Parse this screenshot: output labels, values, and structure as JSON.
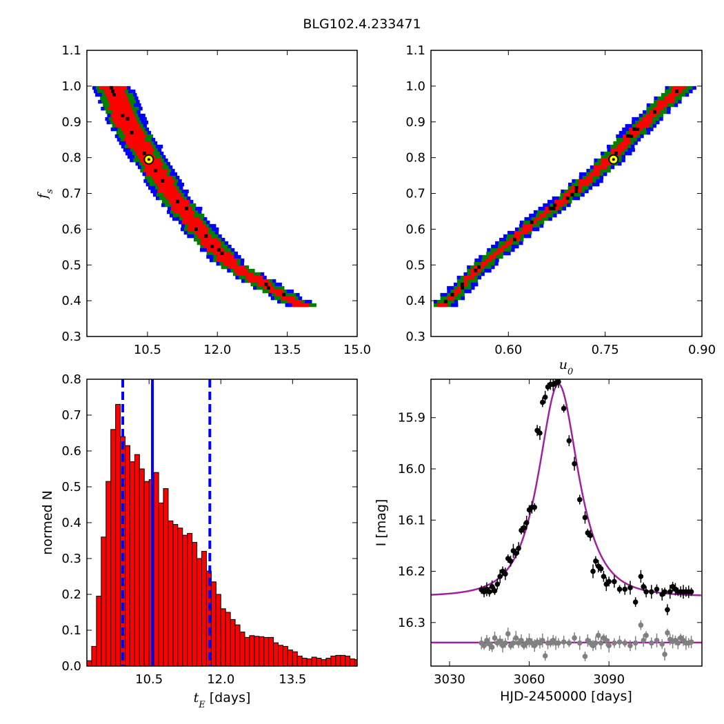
{
  "figure": {
    "title": "BLG102.4.233471"
  },
  "chart_data": [
    {
      "id": "fs_vs_tE",
      "type": "heatmap",
      "xlabel": "",
      "ylabel": "f_s",
      "xlim": [
        9.2,
        15.0
      ],
      "ylim": [
        0.3,
        1.1
      ],
      "xticks": [
        10.5,
        12.0,
        13.5,
        15.0
      ],
      "xtick_labels": [
        "10.5",
        "12.0",
        "13.5",
        "15.0"
      ],
      "yticks": [
        0.3,
        0.4,
        0.5,
        0.6,
        0.7,
        0.8,
        0.9,
        1.0,
        1.1
      ],
      "ytick_labels": [
        "0.3",
        "0.4",
        "0.5",
        "0.6",
        "0.7",
        "0.8",
        "0.9",
        "1.0",
        "1.1"
      ],
      "colors": {
        "outer": "#0000ff",
        "middle": "#008000",
        "inner": "#ff0000",
        "peak": "#000000"
      },
      "ridge": [
        [
          9.75,
          1.0
        ],
        [
          10.05,
          0.9
        ],
        [
          10.5,
          0.8
        ],
        [
          11.0,
          0.7
        ],
        [
          11.6,
          0.6
        ],
        [
          12.3,
          0.5
        ],
        [
          13.6,
          0.4
        ],
        [
          13.95,
          0.38
        ]
      ],
      "best_fit": {
        "x": 10.53,
        "y": 0.795,
        "marker_color": "#ffff00"
      }
    },
    {
      "id": "fs_vs_u0",
      "type": "heatmap",
      "xlabel": "u_0",
      "ylabel": "",
      "xlim": [
        0.48,
        0.9
      ],
      "ylim": [
        0.3,
        1.1
      ],
      "xticks": [
        0.6,
        0.75,
        0.9
      ],
      "xtick_labels": [
        "0.60",
        "0.75",
        "0.90"
      ],
      "yticks": [
        0.3,
        0.4,
        0.5,
        0.6,
        0.7,
        0.8,
        0.9,
        1.0,
        1.1
      ],
      "ytick_labels": [
        "0.3",
        "0.4",
        "0.5",
        "0.6",
        "0.7",
        "0.8",
        "0.9",
        "1.0",
        "1.1"
      ],
      "colors": {
        "outer": "#0000ff",
        "middle": "#008000",
        "inner": "#ff0000",
        "peak": "#000000"
      },
      "ridge": [
        [
          0.495,
          0.38
        ],
        [
          0.56,
          0.5
        ],
        [
          0.64,
          0.62
        ],
        [
          0.7,
          0.7
        ],
        [
          0.76,
          0.8
        ],
        [
          0.81,
          0.9
        ],
        [
          0.87,
          1.0
        ]
      ],
      "best_fit": {
        "x": 0.763,
        "y": 0.795,
        "marker_color": "#ffff00"
      }
    },
    {
      "id": "tE_histogram",
      "type": "bar",
      "xlabel": "t_E [days]",
      "ylabel": "normed N",
      "xlim": [
        9.2,
        14.85
      ],
      "ylim": [
        0.0,
        0.8
      ],
      "xticks": [
        10.5,
        12.0,
        13.5
      ],
      "xtick_labels": [
        "10.5",
        "12.0",
        "13.5"
      ],
      "yticks": [
        0.0,
        0.1,
        0.2,
        0.3,
        0.4,
        0.5,
        0.6,
        0.7,
        0.8
      ],
      "ytick_labels": [
        "0.0",
        "0.1",
        "0.2",
        "0.3",
        "0.4",
        "0.5",
        "0.6",
        "0.7",
        "0.8"
      ],
      "bin_width": 0.1,
      "bin_start": 9.2,
      "values": [
        0.015,
        0.055,
        0.195,
        0.36,
        0.515,
        0.66,
        0.73,
        0.64,
        0.615,
        0.57,
        0.59,
        0.55,
        0.515,
        0.52,
        0.54,
        0.455,
        0.495,
        0.405,
        0.395,
        0.385,
        0.365,
        0.37,
        0.345,
        0.3,
        0.32,
        0.265,
        0.235,
        0.2,
        0.16,
        0.15,
        0.13,
        0.115,
        0.095,
        0.08,
        0.085,
        0.083,
        0.082,
        0.08,
        0.08,
        0.065,
        0.058,
        0.055,
        0.045,
        0.04,
        0.028,
        0.022,
        0.02,
        0.025,
        0.022,
        0.018,
        0.022,
        0.028,
        0.03,
        0.03,
        0.028,
        0.02,
        0.018,
        0.01,
        0.008,
        0.005,
        0.004
      ],
      "bar_color": "#ff0000",
      "edge_color": "#000000",
      "lines": [
        {
          "x": 9.95,
          "style": "dashed",
          "color": "#0000ff"
        },
        {
          "x": 10.57,
          "style": "solid",
          "color": "#0000ff"
        },
        {
          "x": 11.77,
          "style": "dashed",
          "color": "#0000ff"
        }
      ]
    },
    {
      "id": "light_curve",
      "type": "scatter",
      "xlabel": "HJD-2450000 [days]",
      "ylabel": "I [mag]",
      "xlim": [
        3023,
        3125
      ],
      "ylim": [
        16.385,
        15.825
      ],
      "xticks": [
        3030,
        3060,
        3090
      ],
      "xtick_labels": [
        "3030",
        "3060",
        "3090"
      ],
      "yticks": [
        15.9,
        16.0,
        16.1,
        16.2,
        16.3
      ],
      "ytick_labels": [
        "15.9",
        "16.0",
        "16.1",
        "16.2",
        "16.3"
      ],
      "model": {
        "t0": 3071.0,
        "u0": 0.76,
        "tE": 10.53,
        "fs": 0.795,
        "I_base": 16.249,
        "color": "#a020a0"
      },
      "residual_line": {
        "mag": 16.339,
        "color": "#a020a0"
      },
      "series": [
        {
          "color": "#000000",
          "x": [
            3042,
            3043,
            3044,
            3045,
            3046,
            3047,
            3048,
            3049,
            3050,
            3051,
            3052,
            3053,
            3054,
            3055,
            3056,
            3057,
            3058,
            3059,
            3060,
            3061,
            3062,
            3063,
            3064,
            3065,
            3066,
            3067,
            3068,
            3069,
            3070,
            3071,
            3073,
            3075,
            3077,
            3079,
            3081,
            3082,
            3083,
            3084,
            3085,
            3086,
            3087,
            3088,
            3089,
            3090,
            3092,
            3094,
            3096,
            3098,
            3100,
            3102,
            3103,
            3104,
            3106,
            3108,
            3110,
            3111,
            3112,
            3113,
            3114,
            3115,
            3116,
            3117,
            3118,
            3119,
            3120,
            3121
          ],
          "y": [
            16.236,
            16.24,
            16.235,
            16.24,
            16.23,
            16.238,
            16.225,
            16.21,
            16.2,
            16.205,
            16.175,
            16.18,
            16.16,
            16.165,
            16.155,
            16.12,
            16.115,
            16.105,
            16.08,
            16.075,
            16.075,
            15.925,
            15.93,
            15.87,
            15.86,
            15.84,
            15.835,
            15.835,
            15.832,
            15.83,
            15.882,
            15.945,
            15.99,
            16.06,
            16.095,
            16.125,
            16.13,
            16.2,
            16.18,
            16.19,
            16.195,
            16.21,
            16.225,
            16.22,
            16.22,
            16.235,
            16.235,
            16.232,
            16.26,
            16.21,
            16.23,
            16.24,
            16.24,
            16.235,
            16.245,
            16.24,
            16.275,
            16.24,
            16.23,
            16.235,
            16.24,
            16.24,
            16.24,
            16.24,
            16.24,
            16.24
          ]
        },
        {
          "color": "#808080",
          "x": [
            3042,
            3043,
            3044,
            3045,
            3046,
            3047,
            3048,
            3049,
            3050,
            3051,
            3052,
            3053,
            3054,
            3055,
            3056,
            3057,
            3058,
            3059,
            3060,
            3061,
            3062,
            3063,
            3064,
            3065,
            3066,
            3067,
            3068,
            3069,
            3070,
            3071,
            3073,
            3075,
            3077,
            3079,
            3081,
            3082,
            3083,
            3084,
            3085,
            3086,
            3087,
            3088,
            3089,
            3090,
            3092,
            3094,
            3096,
            3098,
            3100,
            3102,
            3103,
            3104,
            3106,
            3108,
            3110,
            3111,
            3112,
            3113,
            3114,
            3115,
            3116,
            3117,
            3118,
            3119,
            3120,
            3121
          ],
          "y": [
            16.34,
            16.345,
            16.335,
            16.342,
            16.348,
            16.33,
            16.34,
            16.336,
            16.345,
            16.34,
            16.322,
            16.345,
            16.34,
            16.33,
            16.34,
            16.335,
            16.345,
            16.34,
            16.335,
            16.34,
            16.345,
            16.338,
            16.34,
            16.335,
            16.365,
            16.34,
            16.34,
            16.335,
            16.34,
            16.34,
            16.338,
            16.34,
            16.33,
            16.34,
            16.366,
            16.335,
            16.34,
            16.345,
            16.34,
            16.325,
            16.34,
            16.33,
            16.335,
            16.345,
            16.34,
            16.338,
            16.34,
            16.345,
            16.34,
            16.305,
            16.335,
            16.325,
            16.34,
            16.335,
            16.342,
            16.362,
            16.32,
            16.333,
            16.337,
            16.335,
            16.34,
            16.33,
            16.335,
            16.34,
            16.34,
            16.338
          ]
        }
      ]
    }
  ]
}
